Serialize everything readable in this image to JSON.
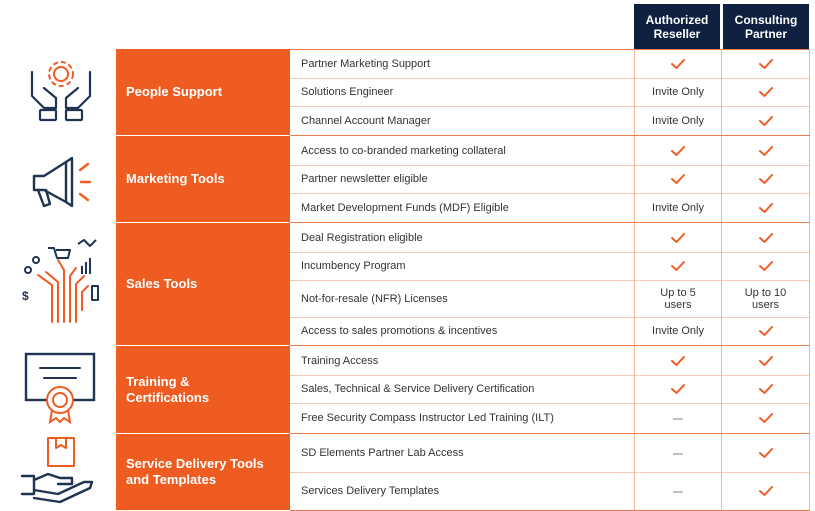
{
  "header": {
    "col1": "Authorized Reseller",
    "col2": "Consulting Partner"
  },
  "colors": {
    "accent": "#ee5c22",
    "header_bg": "#0e1f3f",
    "icon_navy": "#1f3352"
  },
  "sections": [
    {
      "title": "People Support",
      "icon": "hands-gear-icon",
      "rows": [
        {
          "feature": "Partner Marketing Support",
          "reseller": "check",
          "consulting": "check"
        },
        {
          "feature": "Solutions Engineer",
          "reseller": "Invite Only",
          "consulting": "check"
        },
        {
          "feature": "Channel Account Manager",
          "reseller": "Invite Only",
          "consulting": "check"
        }
      ]
    },
    {
      "title": "Marketing Tools",
      "icon": "megaphone-icon",
      "rows": [
        {
          "feature": "Access to co-branded marketing collateral",
          "reseller": "check",
          "consulting": "check"
        },
        {
          "feature": "Partner newsletter eligible",
          "reseller": "check",
          "consulting": "check"
        },
        {
          "feature": "Market Development Funds (MDF) Eligible",
          "reseller": "Invite Only",
          "consulting": "check"
        }
      ]
    },
    {
      "title": "Sales Tools",
      "icon": "sales-network-icon",
      "rows": [
        {
          "feature": "Deal Registration eligible",
          "reseller": "check",
          "consulting": "check"
        },
        {
          "feature": "Incumbency Program",
          "reseller": "check",
          "consulting": "check"
        },
        {
          "feature": "Not-for-resale (NFR) Licenses",
          "reseller": "Up to 5 users",
          "consulting": "Up to 10 users"
        },
        {
          "feature": "Access to sales promotions & incentives",
          "reseller": "Invite Only",
          "consulting": "check"
        }
      ]
    },
    {
      "title": "Training & Certifications",
      "icon": "certificate-icon",
      "rows": [
        {
          "feature": "Training  Access",
          "reseller": "check",
          "consulting": "check"
        },
        {
          "feature": "Sales, Technical & Service Delivery Certification",
          "reseller": "check",
          "consulting": "check"
        },
        {
          "feature": "Free Security Compass Instructor Led Training (ILT)",
          "reseller": "dash",
          "consulting": "check"
        }
      ]
    },
    {
      "title": "Service Delivery Tools and Templates",
      "icon": "hand-box-icon",
      "rows": [
        {
          "feature": "SD Elements Partner Lab Access",
          "reseller": "dash",
          "consulting": "check"
        },
        {
          "feature": "Services Delivery Templates",
          "reseller": "dash",
          "consulting": "check"
        }
      ]
    }
  ]
}
